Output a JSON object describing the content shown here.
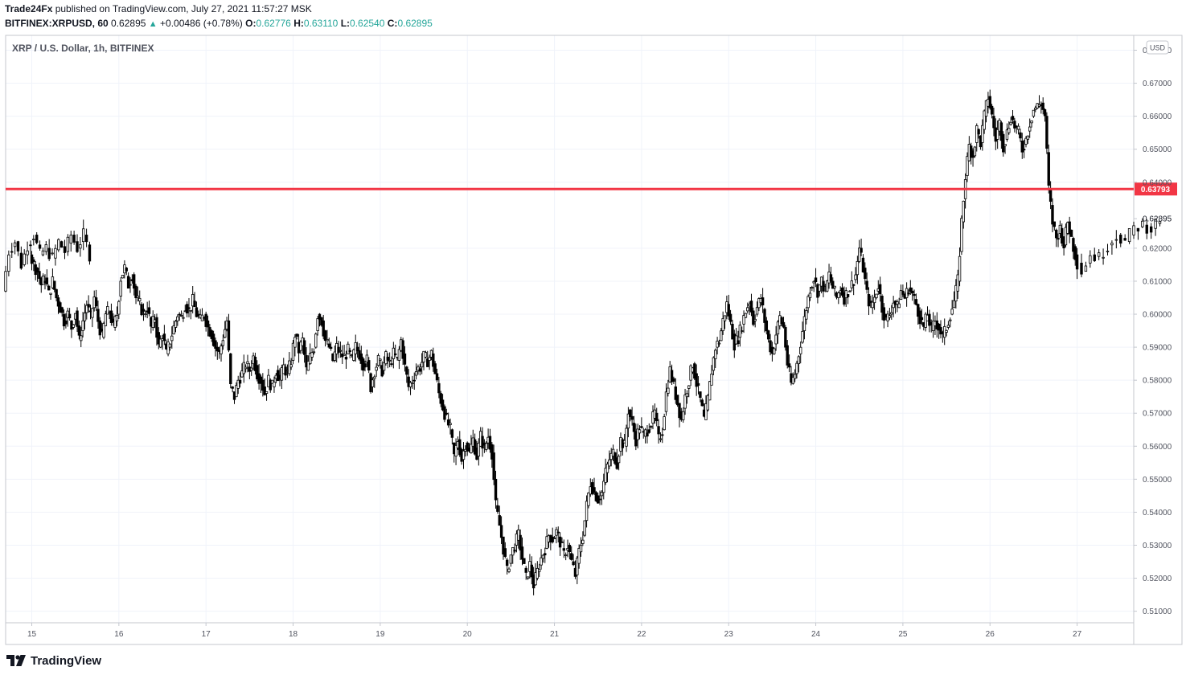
{
  "header": {
    "publisher": "Trade24Fx",
    "published_text": " published on TradingView.com, July 27, 2021 11:57:27 MSK",
    "symbol": "BITFINEX:XRPUSD, 60",
    "last": "0.62895",
    "change": "+0.00486 (+0.78%)",
    "o_label": "O:",
    "o": "0.62776",
    "h_label": "H:",
    "h": "0.63110",
    "l_label": "L:",
    "l": "0.62540",
    "c_label": "C:",
    "c": "0.62895"
  },
  "pane_title": "XRP / U.S. Dollar, 1h, BITFINEX",
  "currency_badge": "USD",
  "footer": {
    "brand": "TradingView",
    "logo_icon": "tradingview-logo-icon"
  },
  "colors": {
    "candle": "#000000",
    "level_line": "#f23645",
    "up_text": "#26a69a",
    "grid": "#f0f3fa"
  },
  "chart_data": {
    "type": "candlestick",
    "title": "XRP / U.S. Dollar, 1h, BITFINEX",
    "x_ticks": [
      "15",
      "16",
      "17",
      "18",
      "19",
      "20",
      "21",
      "22",
      "23",
      "24",
      "25",
      "26",
      "27"
    ],
    "x_range": [
      14.7,
      27.65
    ],
    "ylim": [
      0.5065,
      0.6845
    ],
    "y_ticks": [
      "0.51000",
      "0.52000",
      "0.53000",
      "0.54000",
      "0.55000",
      "0.56000",
      "0.57000",
      "0.58000",
      "0.59000",
      "0.60000",
      "0.61000",
      "0.62000",
      "0.62895",
      "0.64000",
      "0.65000",
      "0.66000",
      "0.67000",
      "0.68000"
    ],
    "last_price": 0.62895,
    "horizontal_line": {
      "value": 0.63793,
      "label": "0.63793"
    },
    "grid": true,
    "series": [
      {
        "day": 14,
        "path": [
          0.607,
          0.619,
          0.622,
          0.615,
          0.621,
          0.624,
          0.618,
          0.62,
          0.617,
          0.622,
          0.619,
          0.624,
          0.62,
          0.624,
          0.618
        ]
      },
      {
        "day": 15,
        "path": [
          0.618,
          0.615,
          0.613,
          0.609,
          0.611,
          0.606,
          0.61,
          0.605,
          0.602,
          0.598,
          0.6,
          0.596,
          0.601,
          0.592,
          0.598,
          0.603,
          0.599,
          0.605,
          0.598,
          0.593,
          0.6,
          0.601,
          0.596,
          0.6
        ]
      },
      {
        "day": 16,
        "path": [
          0.6,
          0.611,
          0.614,
          0.609,
          0.612,
          0.605,
          0.603,
          0.6,
          0.602,
          0.596,
          0.599,
          0.59,
          0.594,
          0.588,
          0.592,
          0.596,
          0.6,
          0.599,
          0.603,
          0.601,
          0.604,
          0.6,
          0.598,
          0.6
        ]
      },
      {
        "day": 17,
        "path": [
          0.6,
          0.596,
          0.594,
          0.59,
          0.588,
          0.593,
          0.598,
          0.578,
          0.575,
          0.58,
          0.582,
          0.585,
          0.583,
          0.587,
          0.582,
          0.58,
          0.576,
          0.58,
          0.578,
          0.583,
          0.58,
          0.584,
          0.582,
          0.586
        ]
      },
      {
        "day": 18,
        "path": [
          0.586,
          0.594,
          0.589,
          0.592,
          0.583,
          0.587,
          0.59,
          0.6,
          0.598,
          0.592,
          0.59,
          0.586,
          0.59,
          0.588,
          0.587,
          0.589,
          0.586,
          0.59,
          0.588,
          0.585,
          0.586,
          0.578,
          0.583,
          0.586
        ]
      },
      {
        "day": 19,
        "path": [
          0.586,
          0.583,
          0.587,
          0.585,
          0.588,
          0.586,
          0.592,
          0.584,
          0.578,
          0.58,
          0.583,
          0.584,
          0.587,
          0.586,
          0.588,
          0.582,
          0.576,
          0.572,
          0.568,
          0.565,
          0.557,
          0.562,
          0.556,
          0.561
        ]
      },
      {
        "day": 20,
        "path": [
          0.561,
          0.558,
          0.562,
          0.557,
          0.563,
          0.559,
          0.563,
          0.558,
          0.542,
          0.536,
          0.529,
          0.522,
          0.527,
          0.53,
          0.533,
          0.526,
          0.52,
          0.524,
          0.518,
          0.522,
          0.526,
          0.529,
          0.533,
          0.532
        ]
      },
      {
        "day": 21,
        "path": [
          0.532,
          0.534,
          0.531,
          0.527,
          0.53,
          0.525,
          0.521,
          0.528,
          0.533,
          0.542,
          0.549,
          0.546,
          0.544,
          0.546,
          0.552,
          0.556,
          0.558,
          0.555,
          0.562,
          0.56,
          0.571,
          0.567,
          0.562,
          0.566
        ]
      },
      {
        "day": 22,
        "path": [
          0.566,
          0.563,
          0.565,
          0.567,
          0.57,
          0.562,
          0.565,
          0.576,
          0.583,
          0.578,
          0.573,
          0.568,
          0.575,
          0.58,
          0.585,
          0.579,
          0.574,
          0.568,
          0.574,
          0.583,
          0.59,
          0.592,
          0.598,
          0.603
        ]
      },
      {
        "day": 23,
        "path": [
          0.603,
          0.597,
          0.591,
          0.593,
          0.597,
          0.601,
          0.604,
          0.598,
          0.602,
          0.605,
          0.598,
          0.592,
          0.588,
          0.594,
          0.599,
          0.596,
          0.585,
          0.579,
          0.582,
          0.588,
          0.595,
          0.602,
          0.608,
          0.611
        ]
      },
      {
        "day": 24,
        "path": [
          0.611,
          0.607,
          0.61,
          0.607,
          0.612,
          0.608,
          0.605,
          0.608,
          0.605,
          0.607,
          0.609,
          0.612,
          0.62,
          0.614,
          0.606,
          0.602,
          0.605,
          0.609,
          0.602,
          0.598,
          0.6,
          0.604,
          0.602,
          0.607
        ]
      },
      {
        "day": 25,
        "path": [
          0.607,
          0.605,
          0.608,
          0.606,
          0.603,
          0.599,
          0.596,
          0.6,
          0.595,
          0.598,
          0.596,
          0.593,
          0.596,
          0.6,
          0.604,
          0.61,
          0.628,
          0.642,
          0.651,
          0.648,
          0.656,
          0.652,
          0.66,
          0.666
        ]
      },
      {
        "day": 26,
        "path": [
          0.666,
          0.66,
          0.653,
          0.658,
          0.651,
          0.655,
          0.66,
          0.657,
          0.655,
          0.65,
          0.653,
          0.658,
          0.662,
          0.663,
          0.664,
          0.66,
          0.638,
          0.628,
          0.623,
          0.626,
          0.621,
          0.628,
          0.623,
          0.618
        ]
      },
      {
        "day": 27,
        "path": [
          0.618,
          0.613,
          0.618,
          0.617,
          0.621,
          0.624,
          0.622,
          0.626,
          0.627,
          0.626,
          0.629
        ]
      }
    ]
  }
}
